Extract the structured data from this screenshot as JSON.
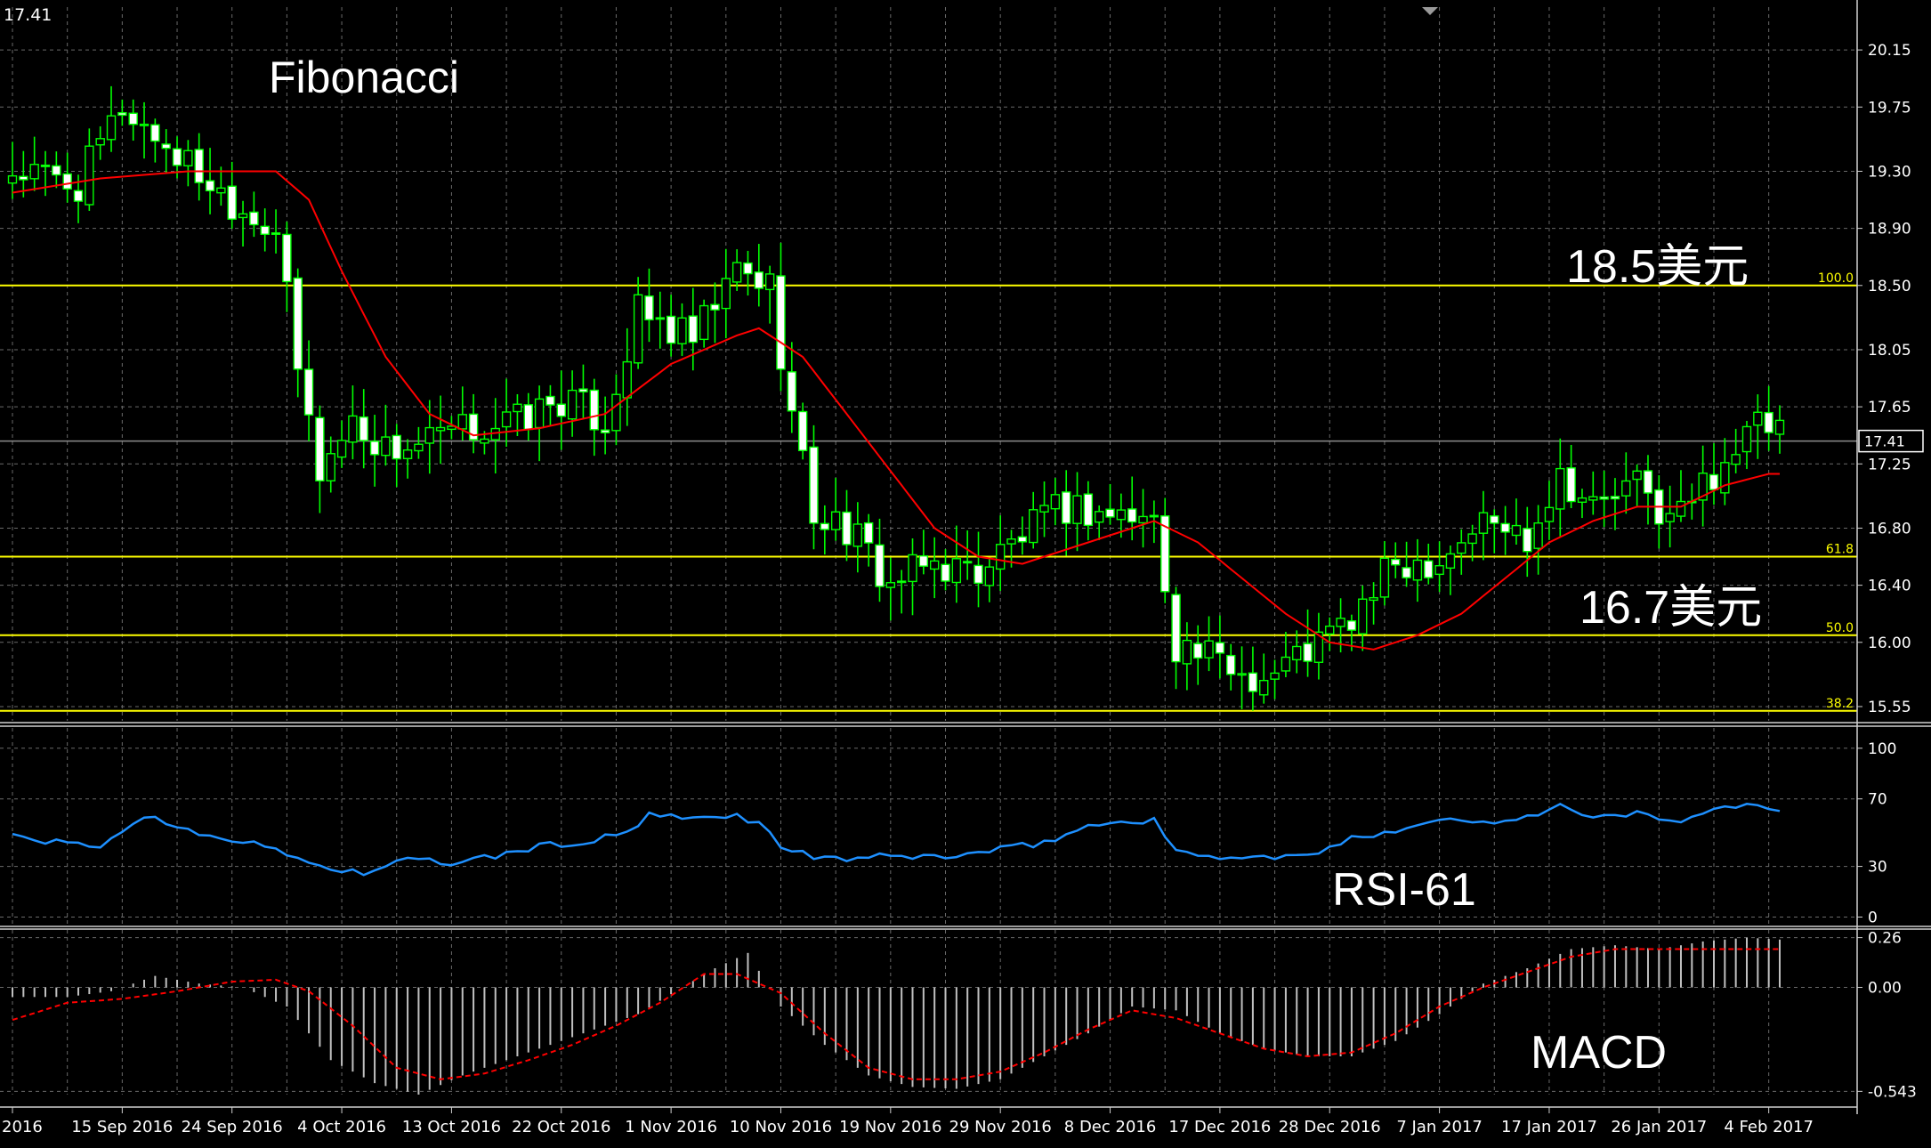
{
  "symbol_price": "17.41",
  "colors": {
    "background": "#000000",
    "grid": "#6a6a6a",
    "candle_up": "#00ff00",
    "candle_body_up": "#000000",
    "candle_body_down": "#ffffff",
    "ma_line": "#ff0000",
    "fib_line": "#ffff00",
    "price_line": "#8c8c8c",
    "rsi_line": "#1e90ff",
    "macd_hist": "#c0c0c0",
    "macd_signal": "#ff0000",
    "text": "#ffffff"
  },
  "annotations": {
    "fibonacci": "Fibonacci",
    "level_high": "18.5美元",
    "level_low": "16.7美元",
    "rsi_label": "RSI-61",
    "macd_label": "MACD"
  },
  "chart_data": [
    {
      "type": "candlestick",
      "panel": "price",
      "ylim": [
        15.45,
        20.45
      ],
      "yticks": [
        "20.15",
        "19.75",
        "19.30",
        "18.90",
        "18.50",
        "18.05",
        "17.65",
        "17.25",
        "16.80",
        "16.40",
        "16.00",
        "15.55"
      ],
      "current_price": 17.41,
      "current_price_label": "17.41",
      "fib_levels": [
        {
          "label": "100.0",
          "value": 18.5
        },
        {
          "label": "61.8",
          "value": 16.6
        },
        {
          "label": "50.0",
          "value": 16.05
        },
        {
          "label": "38.2",
          "value": 15.52
        }
      ],
      "moving_average": "line",
      "close_path": [
        [
          0,
          19.3
        ],
        [
          6,
          19.2
        ],
        [
          10,
          19.75
        ],
        [
          16,
          19.35
        ],
        [
          20,
          19.1
        ],
        [
          24,
          18.9
        ],
        [
          26,
          17.9
        ],
        [
          28,
          17.2
        ],
        [
          31,
          17.55
        ],
        [
          34,
          17.35
        ],
        [
          38,
          17.4
        ],
        [
          42,
          17.5
        ],
        [
          46,
          17.55
        ],
        [
          50,
          17.7
        ],
        [
          54,
          17.55
        ],
        [
          57,
          18.3
        ],
        [
          62,
          18.1
        ],
        [
          66,
          18.6
        ],
        [
          69,
          18.5
        ],
        [
          71,
          17.6
        ],
        [
          73,
          16.9
        ],
        [
          76,
          16.8
        ],
        [
          80,
          16.4
        ],
        [
          84,
          16.55
        ],
        [
          88,
          16.5
        ],
        [
          92,
          16.75
        ],
        [
          96,
          16.95
        ],
        [
          100,
          16.9
        ],
        [
          104,
          16.85
        ],
        [
          106,
          16.0
        ],
        [
          110,
          15.85
        ],
        [
          114,
          15.75
        ],
        [
          118,
          15.95
        ],
        [
          122,
          16.15
        ],
        [
          126,
          16.55
        ],
        [
          130,
          16.6
        ],
        [
          134,
          16.85
        ],
        [
          138,
          16.75
        ],
        [
          141,
          17.2
        ],
        [
          144,
          16.95
        ],
        [
          148,
          17.1
        ],
        [
          151,
          16.85
        ],
        [
          153,
          17.0
        ],
        [
          156,
          17.3
        ],
        [
          159,
          17.5
        ],
        [
          161,
          17.48
        ]
      ],
      "ma_path": [
        [
          0,
          19.15
        ],
        [
          8,
          19.25
        ],
        [
          16,
          19.3
        ],
        [
          24,
          19.3
        ],
        [
          27,
          19.1
        ],
        [
          30,
          18.6
        ],
        [
          34,
          18.0
        ],
        [
          38,
          17.6
        ],
        [
          42,
          17.45
        ],
        [
          48,
          17.5
        ],
        [
          54,
          17.6
        ],
        [
          60,
          17.95
        ],
        [
          66,
          18.15
        ],
        [
          68,
          18.2
        ],
        [
          72,
          18.0
        ],
        [
          76,
          17.6
        ],
        [
          80,
          17.2
        ],
        [
          84,
          16.8
        ],
        [
          88,
          16.6
        ],
        [
          92,
          16.55
        ],
        [
          96,
          16.65
        ],
        [
          100,
          16.75
        ],
        [
          104,
          16.85
        ],
        [
          108,
          16.7
        ],
        [
          112,
          16.45
        ],
        [
          116,
          16.2
        ],
        [
          120,
          16.0
        ],
        [
          124,
          15.95
        ],
        [
          128,
          16.05
        ],
        [
          132,
          16.2
        ],
        [
          136,
          16.45
        ],
        [
          140,
          16.7
        ],
        [
          144,
          16.85
        ],
        [
          148,
          16.95
        ],
        [
          152,
          16.95
        ],
        [
          156,
          17.1
        ],
        [
          160,
          17.18
        ]
      ]
    },
    {
      "type": "line",
      "panel": "rsi",
      "ylim": [
        -5,
        112
      ],
      "yticks": [
        "100",
        "70",
        "30",
        "0"
      ],
      "series": [
        {
          "name": "",
          "path": [
            [
              0,
              48
            ],
            [
              4,
              44
            ],
            [
              8,
              42
            ],
            [
              12,
              60
            ],
            [
              16,
              52
            ],
            [
              20,
              46
            ],
            [
              24,
              40
            ],
            [
              28,
              30
            ],
            [
              32,
              26
            ],
            [
              36,
              34
            ],
            [
              40,
              32
            ],
            [
              44,
              36
            ],
            [
              48,
              42
            ],
            [
              52,
              44
            ],
            [
              56,
              50
            ],
            [
              58,
              60
            ],
            [
              62,
              58
            ],
            [
              66,
              60
            ],
            [
              68,
              56
            ],
            [
              70,
              42
            ],
            [
              74,
              34
            ],
            [
              80,
              36
            ],
            [
              86,
              36
            ],
            [
              90,
              40
            ],
            [
              94,
              44
            ],
            [
              98,
              54
            ],
            [
              104,
              58
            ],
            [
              106,
              38
            ],
            [
              112,
              35
            ],
            [
              118,
              36
            ],
            [
              122,
              46
            ],
            [
              126,
              52
            ],
            [
              130,
              58
            ],
            [
              134,
              56
            ],
            [
              138,
              60
            ],
            [
              141,
              66
            ],
            [
              144,
              58
            ],
            [
              148,
              62
            ],
            [
              151,
              56
            ],
            [
              154,
              62
            ],
            [
              158,
              66
            ],
            [
              161,
              62
            ]
          ]
        }
      ]
    },
    {
      "type": "bar",
      "panel": "macd",
      "ylim": [
        -0.56,
        0.3
      ],
      "yticks": [
        "0.26",
        "0.00",
        "-0.543"
      ],
      "histogram_path": [
        [
          0,
          -0.05
        ],
        [
          5,
          -0.05
        ],
        [
          9,
          -0.02
        ],
        [
          13,
          0.06
        ],
        [
          17,
          0.02
        ],
        [
          21,
          0.0
        ],
        [
          25,
          -0.1
        ],
        [
          29,
          -0.38
        ],
        [
          33,
          -0.5
        ],
        [
          37,
          -0.56
        ],
        [
          41,
          -0.46
        ],
        [
          45,
          -0.38
        ],
        [
          49,
          -0.3
        ],
        [
          53,
          -0.22
        ],
        [
          57,
          -0.14
        ],
        [
          61,
          0.0
        ],
        [
          64,
          0.1
        ],
        [
          67,
          0.18
        ],
        [
          70,
          -0.1
        ],
        [
          74,
          -0.3
        ],
        [
          78,
          -0.46
        ],
        [
          82,
          -0.52
        ],
        [
          86,
          -0.53
        ],
        [
          90,
          -0.48
        ],
        [
          94,
          -0.36
        ],
        [
          98,
          -0.24
        ],
        [
          102,
          -0.1
        ],
        [
          106,
          -0.12
        ],
        [
          110,
          -0.24
        ],
        [
          114,
          -0.32
        ],
        [
          118,
          -0.36
        ],
        [
          122,
          -0.36
        ],
        [
          126,
          -0.28
        ],
        [
          130,
          -0.14
        ],
        [
          134,
          0.02
        ],
        [
          138,
          0.1
        ],
        [
          142,
          0.2
        ],
        [
          146,
          0.22
        ],
        [
          150,
          0.2
        ],
        [
          154,
          0.24
        ],
        [
          158,
          0.26
        ],
        [
          161,
          0.25
        ]
      ],
      "signal_path": [
        [
          0,
          -0.17
        ],
        [
          5,
          -0.08
        ],
        [
          10,
          -0.06
        ],
        [
          15,
          -0.02
        ],
        [
          20,
          0.03
        ],
        [
          24,
          0.04
        ],
        [
          27,
          -0.02
        ],
        [
          31,
          -0.2
        ],
        [
          35,
          -0.42
        ],
        [
          39,
          -0.48
        ],
        [
          43,
          -0.45
        ],
        [
          47,
          -0.38
        ],
        [
          51,
          -0.3
        ],
        [
          55,
          -0.2
        ],
        [
          59,
          -0.08
        ],
        [
          63,
          0.07
        ],
        [
          66,
          0.07
        ],
        [
          70,
          -0.03
        ],
        [
          74,
          -0.24
        ],
        [
          78,
          -0.42
        ],
        [
          82,
          -0.48
        ],
        [
          86,
          -0.48
        ],
        [
          90,
          -0.44
        ],
        [
          94,
          -0.34
        ],
        [
          98,
          -0.22
        ],
        [
          102,
          -0.12
        ],
        [
          106,
          -0.16
        ],
        [
          110,
          -0.24
        ],
        [
          114,
          -0.32
        ],
        [
          118,
          -0.36
        ],
        [
          122,
          -0.34
        ],
        [
          126,
          -0.24
        ],
        [
          130,
          -0.1
        ],
        [
          134,
          0.0
        ],
        [
          138,
          0.08
        ],
        [
          142,
          0.16
        ],
        [
          146,
          0.2
        ],
        [
          150,
          0.2
        ],
        [
          154,
          0.2
        ],
        [
          158,
          0.2
        ],
        [
          161,
          0.2
        ]
      ]
    }
  ],
  "x_axis": {
    "num_bars": 162,
    "labels": [
      {
        "bar": 0,
        "text": "2016"
      },
      {
        "bar": 10,
        "text": "15 Sep 2016"
      },
      {
        "bar": 20,
        "text": "24 Sep 2016"
      },
      {
        "bar": 30,
        "text": "4 Oct 2016"
      },
      {
        "bar": 40,
        "text": "13 Oct 2016"
      },
      {
        "bar": 50,
        "text": "22 Oct 2016"
      },
      {
        "bar": 60,
        "text": "1 Nov 2016"
      },
      {
        "bar": 70,
        "text": "10 Nov 2016"
      },
      {
        "bar": 80,
        "text": "19 Nov 2016"
      },
      {
        "bar": 90,
        "text": "29 Nov 2016"
      },
      {
        "bar": 100,
        "text": "8 Dec 2016"
      },
      {
        "bar": 110,
        "text": "17 Dec 2016"
      },
      {
        "bar": 120,
        "text": "28 Dec 2016"
      },
      {
        "bar": 130,
        "text": "7 Jan 2017"
      },
      {
        "bar": 140,
        "text": "17 Jan 2017"
      },
      {
        "bar": 150,
        "text": "26 Jan 2017"
      },
      {
        "bar": 160,
        "text": "4 Feb 2017"
      }
    ]
  }
}
